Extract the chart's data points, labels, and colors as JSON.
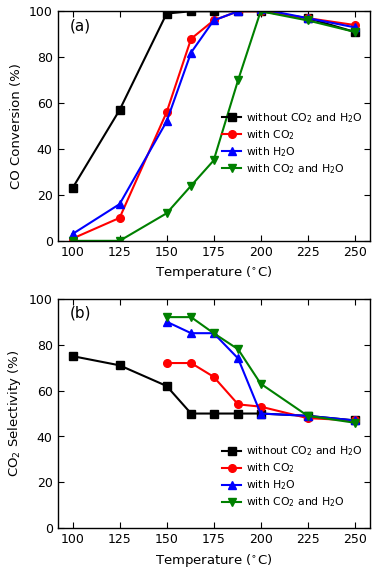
{
  "temp_all": [
    100,
    125,
    150,
    163,
    175,
    188,
    200,
    225,
    250
  ],
  "conv_black": [
    23,
    57,
    99,
    100,
    100,
    100,
    100,
    97,
    91
  ],
  "conv_red": [
    1,
    10,
    56,
    88,
    96,
    100,
    100,
    97,
    94
  ],
  "conv_blue": [
    3,
    16,
    52,
    82,
    96,
    100,
    101,
    97,
    93
  ],
  "conv_green": [
    0,
    0,
    12,
    24,
    35,
    70,
    100,
    96,
    91
  ],
  "sel_black_x": [
    100,
    125,
    150,
    163,
    175,
    188,
    200,
    225,
    250
  ],
  "sel_black_y": [
    75,
    71,
    62,
    50,
    50,
    50,
    50,
    49,
    47
  ],
  "sel_red_x": [
    150,
    163,
    175,
    188,
    200,
    225,
    250
  ],
  "sel_red_y": [
    72,
    72,
    66,
    54,
    53,
    48,
    47
  ],
  "sel_blue_x": [
    150,
    163,
    175,
    188,
    200,
    225,
    250
  ],
  "sel_blue_y": [
    90,
    85,
    85,
    74,
    50,
    49,
    47
  ],
  "sel_green_x": [
    150,
    163,
    175,
    188,
    200,
    225,
    250
  ],
  "sel_green_y": [
    92,
    92,
    85,
    78,
    63,
    49,
    46
  ],
  "colors": {
    "black": "#000000",
    "red": "#ff0000",
    "blue": "#0000ff",
    "green": "#008000"
  },
  "panel_a_label": "(a)",
  "panel_b_label": "(b)",
  "ylabel_a": "CO Conversion (%)",
  "ylabel_b": "CO$_2$ Selectivity (%)",
  "xlabel": "Temperature ($^{\\circ}$C)",
  "legend_labels": [
    "without CO$_2$ and H$_2$O",
    "with CO$_2$",
    "with H$_2$O",
    "with CO$_2$ and H$_2$O"
  ],
  "ylim_a": [
    0,
    100
  ],
  "ylim_b": [
    0,
    100
  ],
  "xlim": [
    92,
    258
  ],
  "xticks": [
    100,
    125,
    150,
    175,
    200,
    225,
    250
  ],
  "yticks_a": [
    0,
    20,
    40,
    60,
    80,
    100
  ],
  "yticks_b": [
    0,
    20,
    40,
    60,
    80,
    100
  ]
}
